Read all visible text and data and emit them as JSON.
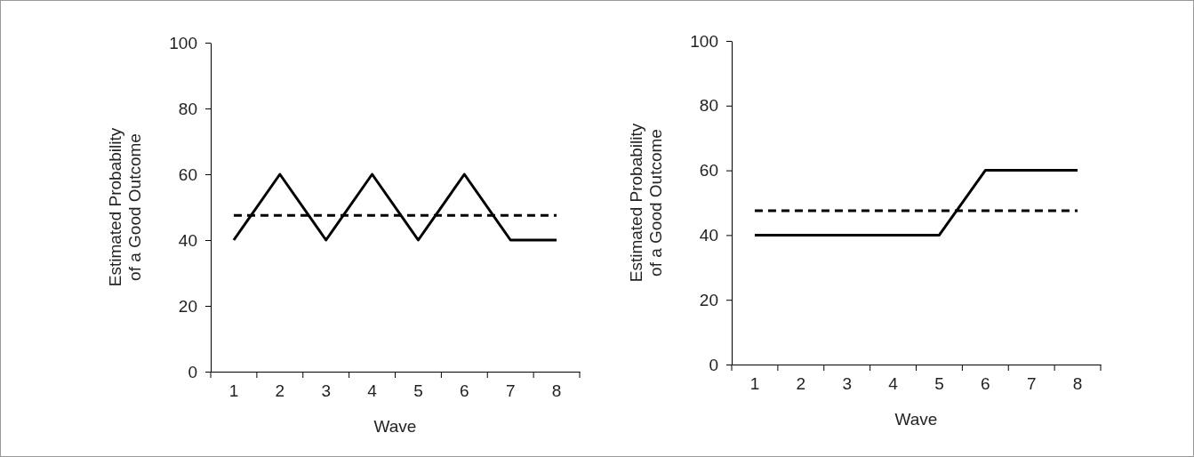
{
  "chart_data": [
    {
      "type": "line",
      "categories": [
        "1",
        "2",
        "3",
        "4",
        "5",
        "6",
        "7",
        "8"
      ],
      "xlabel": "Wave",
      "ylabel": "Estimated Probability of a Good Outcome",
      "ylim": [
        0,
        100
      ],
      "yticks": [
        0,
        20,
        40,
        60,
        80,
        100
      ],
      "grid": false,
      "marker": "none",
      "series": [
        {
          "color": "#000000",
          "line_style": "solid",
          "values": [
            40,
            60,
            40,
            60,
            40,
            60,
            40,
            40
          ]
        },
        {
          "color": "#000000",
          "line_style": "dashed",
          "values": [
            47.5,
            47.5,
            47.5,
            47.5,
            47.5,
            47.5,
            47.5,
            47.5
          ]
        }
      ]
    },
    {
      "type": "line",
      "categories": [
        "1",
        "2",
        "3",
        "4",
        "5",
        "6",
        "7",
        "8"
      ],
      "xlabel": "Wave",
      "ylabel": "Estimated Probability of a Good Outcome",
      "ylim": [
        0,
        100
      ],
      "yticks": [
        0,
        20,
        40,
        60,
        80,
        100
      ],
      "grid": false,
      "marker": "none",
      "series": [
        {
          "color": "#000000",
          "line_style": "solid",
          "values": [
            40,
            40,
            40,
            40,
            40,
            60,
            60,
            60
          ]
        },
        {
          "color": "#000000",
          "line_style": "dashed",
          "values": [
            47.5,
            47.5,
            47.5,
            47.5,
            47.5,
            47.5,
            47.5,
            47.5
          ]
        }
      ]
    }
  ]
}
